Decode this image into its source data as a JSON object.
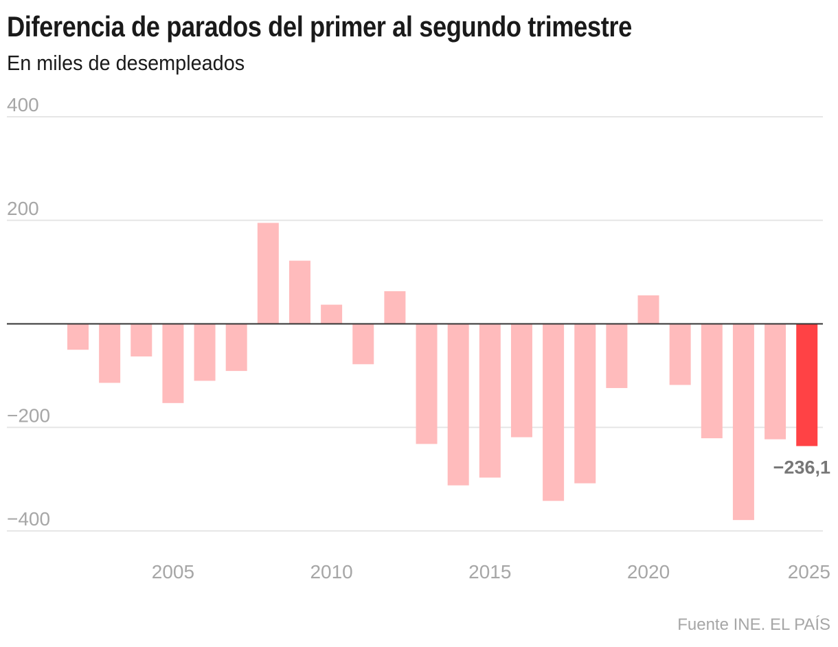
{
  "header": {
    "title": "Diferencia de parados del primer al segundo trimestre",
    "subtitle": "En miles de desempleados"
  },
  "footer": {
    "source": "Fuente INE. EL PAÍS"
  },
  "colors": {
    "bar": "#ffbbbc",
    "highlight": "#ff4245",
    "baseline": "#333333",
    "grid": "#e6e6e6",
    "tick_text": "#a6a6a6",
    "value_label": "#777777"
  },
  "chart_data": {
    "type": "bar",
    "title": "Diferencia de parados del primer al segundo trimestre",
    "subtitle": "En miles de desempleados",
    "xlabel": "",
    "ylabel": "",
    "categories": [
      2002,
      2003,
      2004,
      2005,
      2006,
      2007,
      2008,
      2009,
      2010,
      2011,
      2012,
      2013,
      2014,
      2015,
      2016,
      2017,
      2018,
      2019,
      2020,
      2021,
      2022,
      2023,
      2024,
      2025
    ],
    "values": [
      -50,
      -114,
      -63,
      -153,
      -110,
      -91,
      195,
      122,
      37,
      -78,
      63,
      -232,
      -312,
      -297,
      -219,
      -342,
      -308,
      -124,
      55,
      -118,
      -221,
      -379,
      -223,
      -236.1
    ],
    "highlight_category": 2025,
    "annotations": [
      {
        "category": 2025,
        "text": "−236,1"
      }
    ],
    "ylim": [
      -400,
      400
    ],
    "yticks": [
      {
        "value": 400,
        "label": "400"
      },
      {
        "value": 200,
        "label": "200"
      },
      {
        "value": -200,
        "label": "−200"
      },
      {
        "value": -400,
        "label": "−400"
      }
    ],
    "xticks": [
      {
        "value": 2005,
        "label": "2005"
      },
      {
        "value": 2010,
        "label": "2010"
      },
      {
        "value": 2015,
        "label": "2015"
      },
      {
        "value": 2020,
        "label": "2020"
      },
      {
        "value": 2025,
        "label": "2025"
      }
    ],
    "grid": true,
    "legend": "none",
    "source": "Fuente INE. EL PAÍS"
  }
}
